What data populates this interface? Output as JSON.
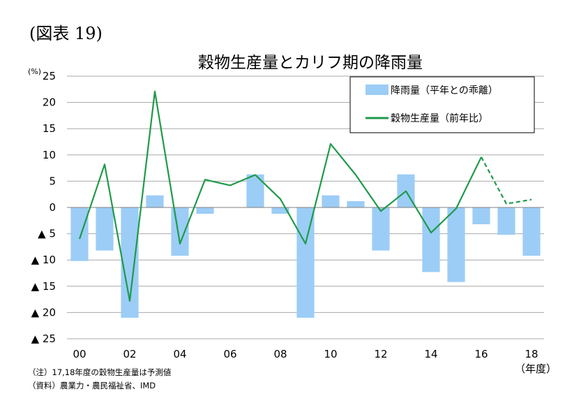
{
  "figure_label": "(図表 19)",
  "notes": {
    "note1": "（注）17,18年度の穀物生産量は予測値",
    "note2": "（資料）農業力・農民福祉省、IMD"
  },
  "chart_data": {
    "type": "bar+line",
    "title": "穀物生産量とカリフ期の降雨量",
    "y_unit": "(%)",
    "x_unit": "（年度）",
    "ylim": [
      -25,
      25
    ],
    "yticks": [
      25,
      20,
      15,
      10,
      5,
      0,
      -5,
      -10,
      -15,
      -20,
      -25
    ],
    "ytick_labels": [
      "25",
      "20",
      "15",
      "10",
      "5",
      "0",
      "▲ 5",
      "▲ 10",
      "▲ 15",
      "▲ 20",
      "▲ 25"
    ],
    "categories": [
      "00",
      "01",
      "02",
      "03",
      "04",
      "05",
      "06",
      "07",
      "08",
      "09",
      "10",
      "11",
      "12",
      "13",
      "14",
      "15",
      "16",
      "17",
      "18"
    ],
    "xtick_labels": [
      "00",
      "02",
      "04",
      "06",
      "08",
      "10",
      "12",
      "14",
      "16",
      "18"
    ],
    "grid": "horizontal",
    "legend_position": "top-right",
    "series": [
      {
        "name": "降雨量（平年との乖離）",
        "type": "bar",
        "color": "#9ccdf6",
        "values": [
          -10.2,
          -8.2,
          -21.0,
          2.3,
          -9.2,
          -1.2,
          0,
          6.3,
          -1.2,
          -21.0,
          2.3,
          1.2,
          -8.2,
          6.3,
          -12.3,
          -14.2,
          -3.2,
          -5.2,
          -9.2
        ]
      },
      {
        "name": "穀物生産量（前年比）",
        "type": "line",
        "color": "#1f9a4a",
        "values": [
          -6.0,
          8.2,
          -17.8,
          22.1,
          -6.9,
          5.3,
          4.2,
          6.2,
          1.6,
          -6.9,
          12.1,
          6.2,
          -0.7,
          3.1,
          -4.8,
          -0.2,
          9.6,
          0.7,
          1.5
        ],
        "forecast_from_index": 16
      }
    ]
  }
}
